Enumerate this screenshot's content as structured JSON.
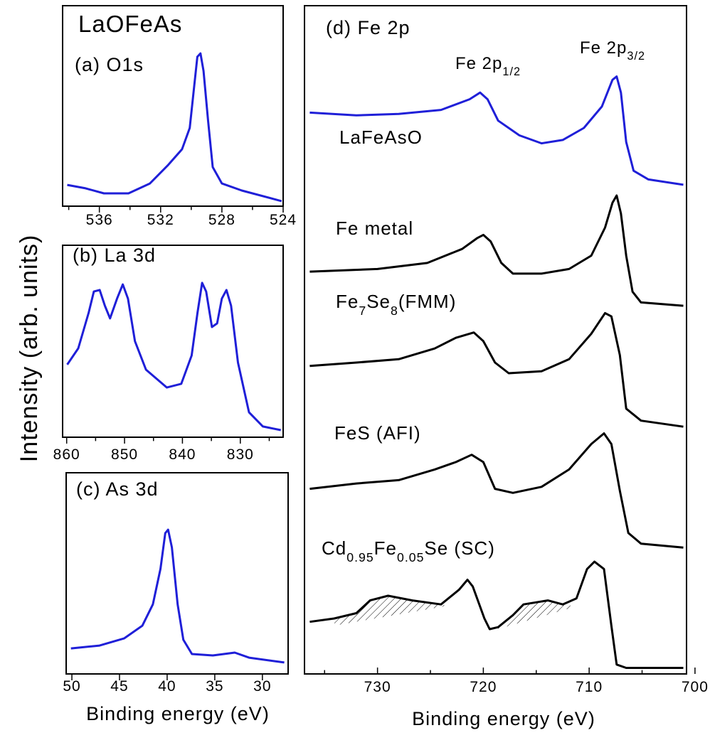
{
  "chart_data": [
    {
      "type": "line",
      "title": "LaOFeAs",
      "label": "(a) O1s",
      "color": "#1f1fd8",
      "xlim": [
        538.4,
        524
      ],
      "ylim": [
        0,
        1
      ],
      "xticks": [
        536,
        532,
        528,
        524
      ],
      "xticks_minor": [
        538,
        534,
        530,
        526
      ],
      "x": [
        538.1,
        536.9,
        535.7,
        534.1,
        532.7,
        531.5,
        530.6,
        530.1,
        529.8,
        529.6,
        529.4,
        529.2,
        528.9,
        528.6,
        528.0,
        526.7,
        524.1
      ],
      "values": [
        0.106,
        0.089,
        0.064,
        0.064,
        0.113,
        0.206,
        0.284,
        0.39,
        0.603,
        0.745,
        0.762,
        0.674,
        0.426,
        0.195,
        0.113,
        0.078,
        0.025
      ]
    },
    {
      "type": "line",
      "label": "(b) La 3d",
      "ylabel": "Intensity (arb. units)",
      "color": "#1f1fd8",
      "xlim": [
        860.7,
        822.6
      ],
      "ylim": [
        0,
        1
      ],
      "xticks": [
        860,
        850,
        840,
        830
      ],
      "xticks_minor": [
        855,
        845,
        835,
        825
      ],
      "x": [
        859.9,
        858.0,
        856.2,
        855.3,
        854.3,
        853.4,
        852.5,
        851.3,
        850.3,
        849.4,
        848.2,
        846.3,
        842.7,
        840.2,
        838.4,
        837.4,
        836.6,
        835.9,
        834.9,
        834.0,
        833.2,
        832.4,
        831.6,
        830.4,
        828.5,
        826.1,
        823.0
      ],
      "values": [
        0.378,
        0.463,
        0.648,
        0.759,
        0.767,
        0.685,
        0.619,
        0.722,
        0.796,
        0.722,
        0.5,
        0.352,
        0.259,
        0.278,
        0.426,
        0.648,
        0.804,
        0.759,
        0.574,
        0.593,
        0.722,
        0.767,
        0.685,
        0.389,
        0.13,
        0.056,
        0.037
      ]
    },
    {
      "type": "line",
      "label": "(c) As 3d",
      "xlabel": "Binding energy (eV)",
      "color": "#1f1fd8",
      "xlim": [
        50.6,
        27.3
      ],
      "ylim": [
        0,
        1
      ],
      "xticks": [
        50,
        45,
        40,
        35,
        30
      ],
      "x": [
        50.1,
        47.1,
        44.5,
        42.6,
        41.5,
        40.7,
        40.2,
        39.9,
        39.5,
        38.9,
        38.3,
        37.4,
        35.2,
        32.9,
        31.4,
        27.7
      ],
      "values": [
        0.127,
        0.141,
        0.177,
        0.24,
        0.346,
        0.523,
        0.7,
        0.717,
        0.629,
        0.346,
        0.17,
        0.099,
        0.092,
        0.106,
        0.081,
        0.057
      ]
    },
    {
      "type": "line",
      "label": "(d) Fe 2p",
      "xlabel": "Binding energy (eV)",
      "xlim": [
        736.9,
        700.8
      ],
      "ylim": [
        0,
        10
      ],
      "xticks": [
        730,
        720,
        710,
        700
      ],
      "xticks_minor": [
        735,
        725,
        715,
        705
      ],
      "annotations": [
        {
          "text": [
            "Fe 2p",
            {
              "sub": "1/2"
            }
          ]
        },
        {
          "text": [
            "Fe 2p",
            {
              "sub": "3/2"
            }
          ]
        }
      ],
      "series": [
        {
          "name": [
            "LaFeAsO"
          ],
          "color": "#1f1fd8",
          "x": [
            736.4,
            732.0,
            728.0,
            724.0,
            721.3,
            720.3,
            719.6,
            718.6,
            716.6,
            714.5,
            712.5,
            710.5,
            708.8,
            707.8,
            707.4,
            707.0,
            706.5,
            705.8,
            704.4,
            701.1
          ],
          "values": [
            8.4,
            8.36,
            8.38,
            8.44,
            8.6,
            8.7,
            8.6,
            8.28,
            8.06,
            7.94,
            7.99,
            8.17,
            8.49,
            8.89,
            8.94,
            8.7,
            7.96,
            7.53,
            7.4,
            7.32
          ]
        },
        {
          "name": [
            "Fe metal"
          ],
          "color": "#000000",
          "x": [
            736.4,
            730.0,
            725.3,
            722.0,
            720.6,
            720.0,
            719.3,
            718.3,
            717.2,
            714.5,
            711.9,
            709.8,
            708.5,
            707.8,
            707.4,
            707.0,
            706.5,
            705.9,
            705.1,
            701.1
          ],
          "values": [
            6.02,
            6.06,
            6.15,
            6.36,
            6.52,
            6.57,
            6.47,
            6.15,
            5.99,
            5.99,
            6.06,
            6.26,
            6.68,
            7.05,
            7.16,
            6.89,
            6.26,
            5.72,
            5.56,
            5.51
          ]
        },
        {
          "name": [
            "Fe",
            {
              "sub": "7"
            },
            "Se",
            {
              "sub": "8"
            },
            "(FMM)"
          ],
          "color": "#000000",
          "x": [
            736.4,
            732.0,
            728.0,
            724.6,
            722.6,
            720.9,
            720.0,
            718.9,
            717.6,
            714.5,
            711.9,
            709.8,
            708.5,
            707.9,
            707.1,
            706.5,
            705.1,
            701.1
          ],
          "values": [
            4.61,
            4.66,
            4.71,
            4.87,
            5.03,
            5.11,
            4.98,
            4.66,
            4.5,
            4.53,
            4.71,
            5.09,
            5.4,
            5.35,
            4.77,
            3.97,
            3.79,
            3.7
          ]
        },
        {
          "name": [
            "FeS (AFI)"
          ],
          "color": "#000000",
          "x": [
            736.4,
            732.0,
            728.0,
            724.6,
            722.6,
            721.1,
            720.0,
            718.9,
            717.2,
            714.5,
            711.9,
            709.8,
            708.6,
            707.9,
            707.1,
            706.3,
            705.1,
            701.1
          ],
          "values": [
            2.77,
            2.85,
            2.9,
            3.06,
            3.17,
            3.28,
            3.17,
            2.77,
            2.71,
            2.8,
            3.06,
            3.44,
            3.6,
            3.44,
            2.74,
            2.11,
            1.95,
            1.89
          ]
        },
        {
          "name": [
            "Cd",
            {
              "sub": "0.95"
            },
            "Fe",
            {
              "sub": "0.05"
            },
            "Se (SC)"
          ],
          "color": "#000000",
          "x": [
            736.4,
            734.1,
            732.0,
            730.7,
            729.0,
            726.7,
            724.0,
            722.3,
            721.5,
            721.0,
            719.9,
            719.4,
            718.6,
            717.2,
            716.2,
            713.9,
            712.5,
            711.2,
            710.2,
            709.5,
            708.6,
            707.9,
            707.4,
            706.5,
            701.1
          ],
          "values": [
            0.78,
            0.83,
            0.91,
            1.1,
            1.17,
            1.1,
            1.04,
            1.26,
            1.41,
            1.31,
            0.83,
            0.67,
            0.7,
            0.88,
            1.04,
            1.1,
            1.04,
            1.13,
            1.57,
            1.68,
            1.57,
            0.72,
            0.14,
            0.09,
            0.09
          ]
        }
      ]
    }
  ]
}
